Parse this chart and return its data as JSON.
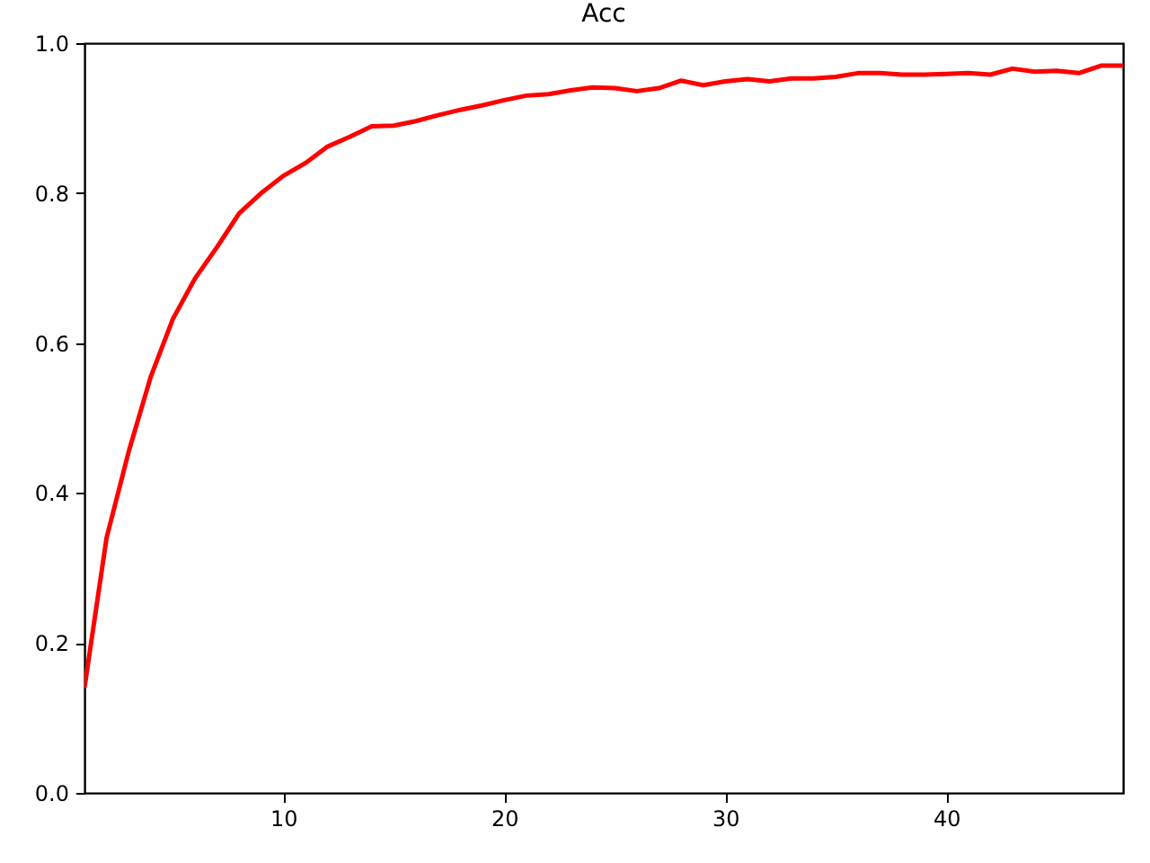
{
  "chart_data": {
    "type": "line",
    "title": "Acc",
    "x": [
      1,
      2,
      3,
      4,
      5,
      6,
      7,
      8,
      9,
      10,
      11,
      12,
      13,
      14,
      15,
      16,
      17,
      18,
      19,
      20,
      21,
      22,
      23,
      24,
      25,
      26,
      27,
      28,
      29,
      30,
      31,
      32,
      33,
      34,
      35,
      36,
      37,
      38,
      39,
      40,
      41,
      42,
      43,
      44,
      45,
      46,
      47,
      48
    ],
    "series": [
      {
        "color": "#ff0000",
        "values": [
          0.14,
          0.34,
          0.455,
          0.555,
          0.632,
          0.686,
          0.728,
          0.773,
          0.8,
          0.823,
          0.84,
          0.862,
          0.875,
          0.889,
          0.89,
          0.896,
          0.904,
          0.911,
          0.917,
          0.924,
          0.93,
          0.932,
          0.937,
          0.941,
          0.94,
          0.936,
          0.94,
          0.95,
          0.944,
          0.949,
          0.952,
          0.949,
          0.953,
          0.953,
          0.955,
          0.96,
          0.96,
          0.958,
          0.958,
          0.959,
          0.96,
          0.958,
          0.966,
          0.962,
          0.963,
          0.96,
          0.97,
          0.97
        ]
      }
    ],
    "xlim": [
      1,
      48
    ],
    "xticks": [
      10,
      20,
      30,
      40
    ],
    "ylim": [
      0,
      1
    ],
    "yticks": [
      {
        "value": 0,
        "label": "0.0"
      },
      {
        "value": 0.2,
        "label": "0.2"
      },
      {
        "value": 0.4,
        "label": "0.4"
      },
      {
        "value": 0.6,
        "label": "0.6"
      },
      {
        "value": 0.8,
        "label": "0.8"
      },
      {
        "value": 1,
        "label": "1.0"
      }
    ]
  }
}
